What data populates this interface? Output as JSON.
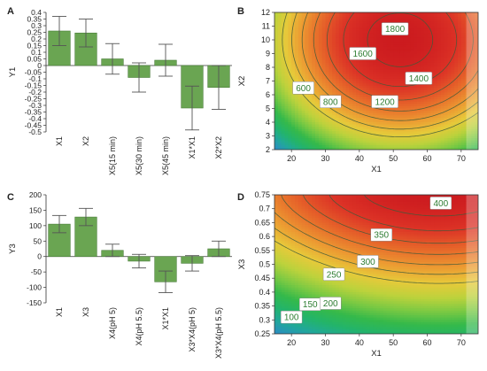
{
  "panels": [
    {
      "letter": "A",
      "type": "bar",
      "ylabel": "Y1",
      "ylim": [
        -0.5,
        0.4
      ],
      "ticks": [
        -0.5,
        -0.45,
        -0.4,
        -0.35,
        -0.3,
        -0.25,
        -0.2,
        -0.15,
        -0.1,
        -0.05,
        0,
        0.05,
        0.1,
        0.15,
        0.2,
        0.25,
        0.3,
        0.35,
        0.4
      ],
      "tick_labels": [
        "-0.5",
        "-0.45",
        "-0.4",
        "-0.35",
        "-0.3",
        "-0.25",
        "-0.2",
        "-0.15",
        "-0.1",
        "-0.05",
        "0",
        "0.05",
        "0.1",
        "0.15",
        "0.2",
        "0.25",
        "0.3",
        "0.35",
        "0.4"
      ],
      "categories": [
        "X1",
        "X2",
        "X5(15 min)",
        "X5(30 min)",
        "X5(45 min)",
        "X1*X1",
        "X2*X2"
      ],
      "values": [
        0.26,
        0.245,
        0.05,
        -0.09,
        0.04,
        -0.32,
        -0.165
      ],
      "errors": [
        0.11,
        0.105,
        0.115,
        0.11,
        0.12,
        0.165,
        0.165
      ]
    },
    {
      "letter": "B",
      "type": "contour",
      "xlabel": "X1",
      "ylabel": "X2",
      "xlim": [
        15,
        75
      ],
      "ylim": [
        2,
        12
      ],
      "xticks": [
        20,
        30,
        40,
        50,
        60,
        70
      ],
      "yticks": [
        2,
        3,
        4,
        5,
        6,
        7,
        8,
        9,
        10,
        11,
        12
      ],
      "contour_labels": [
        "600",
        "800",
        "1200",
        "1400",
        "1600",
        "1800"
      ]
    },
    {
      "letter": "C",
      "type": "bar",
      "ylabel": "Y3",
      "ylim": [
        -150,
        200
      ],
      "ticks": [
        -150,
        -100,
        -50,
        0,
        50,
        100,
        150,
        200
      ],
      "tick_labels": [
        "-150",
        "-100",
        "-50",
        "0",
        "50",
        "100",
        "150",
        "200"
      ],
      "categories": [
        "X1",
        "X3",
        "X4(pH 5)",
        "X4(pH 5.5)",
        "X1*X1",
        "X3*X4(pH 5)",
        "X3*X4(pH 5.5)"
      ],
      "values": [
        105,
        128,
        20,
        -15,
        -82,
        -22,
        25
      ],
      "errors": [
        28,
        28,
        20,
        22,
        35,
        25,
        25
      ]
    },
    {
      "letter": "D",
      "type": "contour",
      "xlabel": "X1",
      "ylabel": "X3",
      "xlim": [
        15,
        75
      ],
      "ylim": [
        0.25,
        0.75
      ],
      "xticks": [
        20,
        30,
        40,
        50,
        60,
        70
      ],
      "yticks": [
        0.25,
        0.3,
        0.35,
        0.4,
        0.45,
        0.5,
        0.55,
        0.6,
        0.65,
        0.7,
        0.75
      ],
      "ytick_labels": [
        "0.25",
        "0.3",
        "0.35",
        "0.4",
        "0.45",
        "0.5",
        "0.55",
        "0.6",
        "0.65",
        "0.7",
        "0.75"
      ],
      "contour_labels": [
        "100",
        "150",
        "200",
        "250",
        "300",
        "350",
        "400"
      ]
    }
  ],
  "colors": {
    "bar": "#6aa552",
    "bar_edge": "#4a7d3a",
    "error_bar": "#555555",
    "axis": "#333333",
    "ramp": [
      "#2a8fbf",
      "#21a89a",
      "#23b46a",
      "#35b94a",
      "#7ac943",
      "#bcd23c",
      "#e7c93a",
      "#ec9a32",
      "#e7682a",
      "#dc3226",
      "#cc1b1f"
    ],
    "contour_line": "#3d5a3a",
    "label_text": "#2e7d32"
  },
  "chart_data": [
    {
      "type": "bar",
      "categories": [
        "X1",
        "X2",
        "X5(15 min)",
        "X5(30 min)",
        "X5(45 min)",
        "X1*X1",
        "X2*X2"
      ],
      "series": [
        {
          "values": [
            0.26,
            0.245,
            0.05,
            -0.09,
            0.04,
            -0.32,
            -0.165
          ],
          "errors": [
            0.11,
            0.105,
            0.115,
            0.11,
            0.12,
            0.165,
            0.165
          ]
        }
      ],
      "ylabel": "Y1",
      "ylim": [
        -0.5,
        0.4
      ]
    },
    {
      "type": "heatmap",
      "xlabel": "X1",
      "ylabel": "X2",
      "xlim": [
        15,
        75
      ],
      "ylim": [
        2,
        12
      ],
      "contour_levels": [
        600,
        800,
        1200,
        1400,
        1600,
        1800
      ]
    },
    {
      "type": "bar",
      "categories": [
        "X1",
        "X3",
        "X4(pH 5)",
        "X4(pH 5.5)",
        "X1*X1",
        "X3*X4(pH 5)",
        "X3*X4(pH 5.5)"
      ],
      "series": [
        {
          "values": [
            105,
            128,
            20,
            -15,
            -82,
            -22,
            25
          ],
          "errors": [
            28,
            28,
            20,
            22,
            35,
            25,
            25
          ]
        }
      ],
      "ylabel": "Y3",
      "ylim": [
        -150,
        200
      ]
    },
    {
      "type": "heatmap",
      "xlabel": "X1",
      "ylabel": "X3",
      "xlim": [
        15,
        75
      ],
      "ylim": [
        0.25,
        0.75
      ],
      "contour_levels": [
        100,
        150,
        200,
        250,
        300,
        350,
        400
      ]
    }
  ]
}
